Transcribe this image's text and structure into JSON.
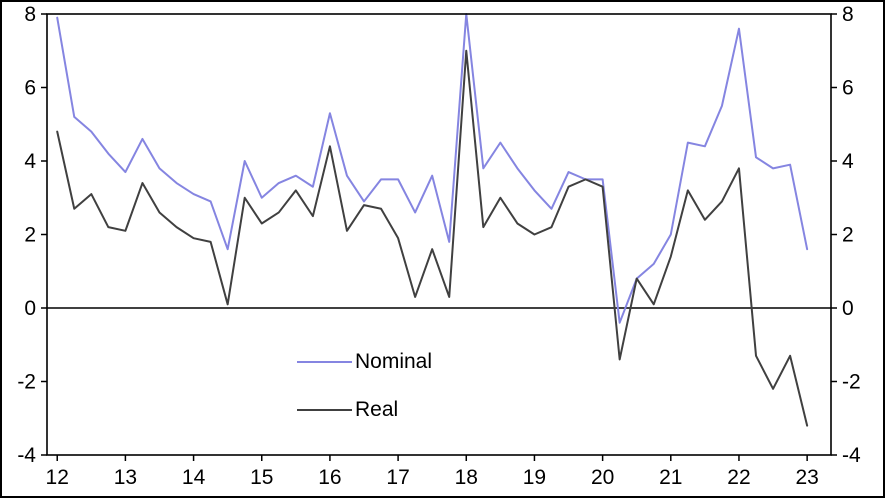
{
  "chart_data": {
    "type": "line",
    "title": "",
    "xlabel": "",
    "ylabel": "",
    "xlim": [
      11.85,
      23.35
    ],
    "ylim": [
      -4,
      8
    ],
    "x_ticks": [
      12,
      13,
      14,
      15,
      16,
      17,
      18,
      19,
      20,
      21,
      22,
      23
    ],
    "y_ticks_left": [
      8,
      6,
      4,
      2,
      0,
      -2,
      -4
    ],
    "y_ticks_right": [
      8,
      6,
      4,
      2,
      0,
      -2,
      -4
    ],
    "grid": false,
    "zero_line": true,
    "legend_position": "inside-lower-center-left",
    "x": [
      12,
      12.25,
      12.5,
      12.75,
      13,
      13.25,
      13.5,
      13.75,
      14,
      14.25,
      14.5,
      14.75,
      15,
      15.25,
      15.5,
      15.75,
      16,
      16.25,
      16.5,
      16.75,
      17,
      17.25,
      17.5,
      17.75,
      18,
      18.25,
      18.5,
      18.75,
      19,
      19.25,
      19.5,
      19.75,
      20,
      20.25,
      20.5,
      20.75,
      21,
      21.25,
      21.5,
      21.75,
      22,
      22.25,
      22.5,
      22.75,
      23
    ],
    "series": [
      {
        "name": "Nominal",
        "color": "#8585E1",
        "values": [
          7.9,
          5.2,
          4.8,
          4.2,
          3.7,
          4.6,
          3.8,
          3.4,
          3.1,
          2.9,
          1.6,
          4.0,
          3.0,
          3.4,
          3.6,
          3.3,
          5.3,
          3.6,
          2.9,
          3.5,
          3.5,
          2.6,
          3.6,
          1.8,
          8.0,
          3.8,
          4.5,
          3.8,
          3.2,
          2.7,
          3.7,
          3.5,
          3.5,
          -0.4,
          0.8,
          1.2,
          2.0,
          4.5,
          4.4,
          5.5,
          7.6,
          4.1,
          3.8,
          3.9,
          1.6
        ]
      },
      {
        "name": "Real",
        "color": "#404040",
        "values": [
          4.8,
          2.7,
          3.1,
          2.2,
          2.1,
          3.4,
          2.6,
          2.2,
          1.9,
          1.8,
          0.1,
          3.0,
          2.3,
          2.6,
          3.2,
          2.5,
          4.4,
          2.1,
          2.8,
          2.7,
          1.9,
          0.3,
          1.6,
          0.3,
          7.0,
          2.2,
          3.0,
          2.3,
          2.0,
          2.2,
          3.3,
          3.5,
          3.3,
          -1.4,
          0.8,
          0.1,
          1.4,
          3.2,
          2.4,
          2.9,
          3.8,
          -1.3,
          -2.2,
          -1.3,
          -3.2
        ]
      }
    ]
  }
}
